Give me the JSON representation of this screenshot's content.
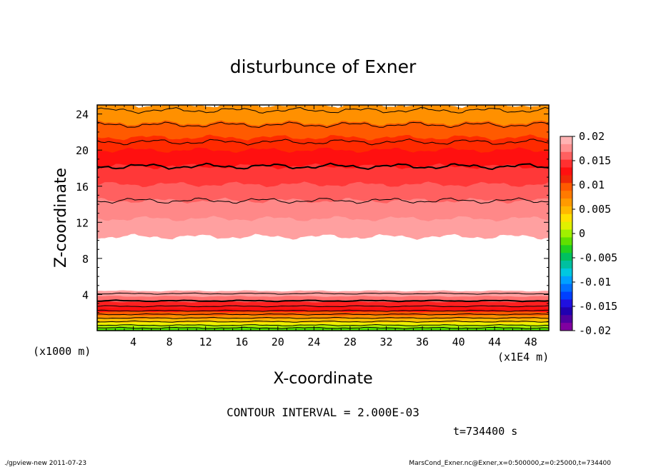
{
  "chart_data": {
    "type": "heatmap",
    "title": "disturbunce of Exner",
    "xlabel": "X-coordinate",
    "ylabel": "Z-coordinate",
    "x_unit": "(x1E4 m)",
    "y_unit": "(x1000 m)",
    "xlim": [
      0,
      50
    ],
    "ylim": [
      0,
      25
    ],
    "x_ticks": [
      4,
      8,
      12,
      16,
      20,
      24,
      28,
      32,
      36,
      40,
      44,
      48
    ],
    "y_ticks": [
      4,
      8,
      12,
      16,
      20,
      24
    ],
    "colorbar": {
      "ticks": [
        "0.02",
        "0.015",
        "0.01",
        "0.005",
        "0",
        "-0.005",
        "-0.01",
        "-0.015",
        "-0.02"
      ],
      "range": [
        -0.02,
        0.02
      ],
      "colors_top_to_bottom": [
        "#ffb3b3",
        "#ff9090",
        "#ff6060",
        "#ff3030",
        "#ff1010",
        "#f02808",
        "#ff5a00",
        "#ff7a00",
        "#ff9a00",
        "#ffb800",
        "#ffe000",
        "#e0f000",
        "#a0f000",
        "#60e000",
        "#20d020",
        "#00c060",
        "#00c0a0",
        "#00c8e0",
        "#00a0ff",
        "#0070ff",
        "#0040ff",
        "#2010e0",
        "#2000b0",
        "#5000a0",
        "#8000a0"
      ]
    },
    "bands": [
      {
        "z_from": 23.0,
        "z_to": 25.0,
        "color": "#ff9000"
      },
      {
        "z_from": 21.4,
        "z_to": 23.0,
        "color": "#ff5a00"
      },
      {
        "z_from": 20.0,
        "z_to": 21.4,
        "color": "#ff2a00"
      },
      {
        "z_from": 18.2,
        "z_to": 20.0,
        "color": "#ff1010"
      },
      {
        "z_from": 16.2,
        "z_to": 18.2,
        "color": "#ff3838"
      },
      {
        "z_from": 14.4,
        "z_to": 16.2,
        "color": "#ff6060"
      },
      {
        "z_from": 12.4,
        "z_to": 14.4,
        "color": "#ff8888"
      },
      {
        "z_from": 10.4,
        "z_to": 12.4,
        "color": "#ffa0a0"
      },
      {
        "z_from": 4.4,
        "z_to": 10.4,
        "color": "#ffffff"
      },
      {
        "z_from": 3.8,
        "z_to": 4.4,
        "color": "#ffa0a0"
      },
      {
        "z_from": 3.2,
        "z_to": 3.8,
        "color": "#ff7070"
      },
      {
        "z_from": 2.6,
        "z_to": 3.2,
        "color": "#ff2020"
      },
      {
        "z_from": 2.1,
        "z_to": 2.6,
        "color": "#ff1010"
      },
      {
        "z_from": 1.7,
        "z_to": 2.1,
        "color": "#ff5a00"
      },
      {
        "z_from": 1.3,
        "z_to": 1.7,
        "color": "#ff9000"
      },
      {
        "z_from": 0.9,
        "z_to": 1.3,
        "color": "#ffc000"
      },
      {
        "z_from": 0.6,
        "z_to": 0.9,
        "color": "#f0f000"
      },
      {
        "z_from": 0.3,
        "z_to": 0.6,
        "color": "#a8f000"
      },
      {
        "z_from": 0.0,
        "z_to": 0.3,
        "color": "#50e000"
      }
    ],
    "contour_levels_z": [
      24.4,
      22.8,
      20.9,
      18.2,
      14.4,
      4.1,
      3.3,
      2.7,
      2.2,
      1.8,
      1.4,
      1.0,
      0.6,
      0.3
    ],
    "contour_interval_text": "CONTOUR INTERVAL = 2.000E-03",
    "time_text": "t=734400 s"
  },
  "footer": {
    "left": "./gpview-new 2011-07-23",
    "right": "MarsCond_Exner.nc@Exner,x=0:500000,z=0:25000,t=734400"
  }
}
